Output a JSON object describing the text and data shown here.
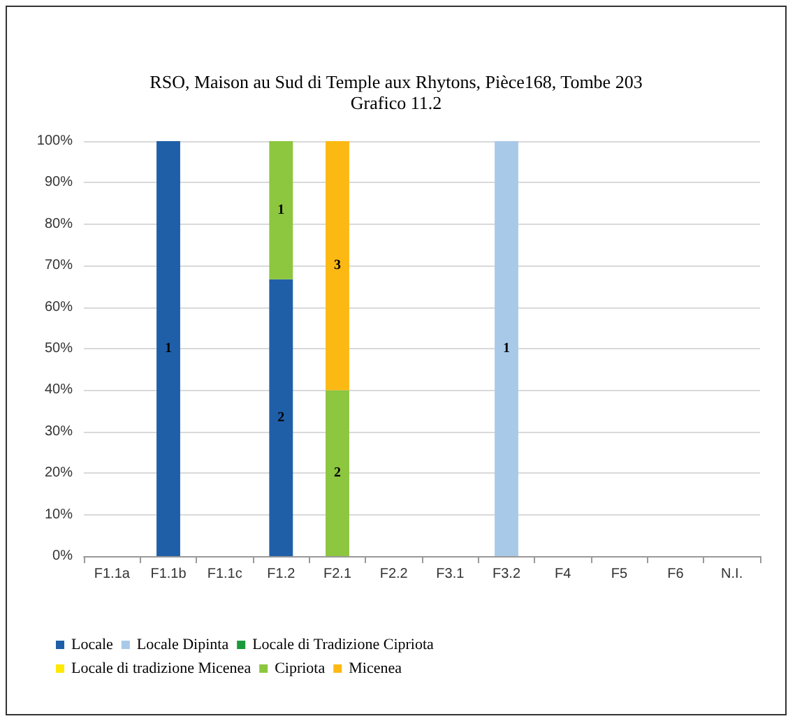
{
  "chart_data": {
    "type": "bar",
    "title": "RSO, Maison au Sud di Temple aux Rhytons, Pièce168, Tombe 203",
    "subtitle": "Grafico 11.2",
    "stacked": true,
    "categories": [
      "F1.1a",
      "F1.1b",
      "F1.1c",
      "F1.2",
      "F2.1",
      "F2.2",
      "F3.1",
      "F3.2",
      "F4",
      "F5",
      "F6",
      "N.I."
    ],
    "series": [
      {
        "name": "Locale",
        "color": "#1f5fa8",
        "values": [
          null,
          100,
          null,
          66.7,
          null,
          null,
          null,
          null,
          null,
          null,
          null,
          null
        ]
      },
      {
        "name": "Locale Dipinta",
        "color": "#a9c9e8",
        "values": [
          null,
          null,
          null,
          null,
          null,
          null,
          null,
          100,
          null,
          null,
          null,
          null
        ]
      },
      {
        "name": "Locale di Tradizione Cipriota",
        "color": "#1a9a3a",
        "values": [
          null,
          null,
          null,
          null,
          null,
          null,
          null,
          null,
          null,
          null,
          null,
          null
        ]
      },
      {
        "name": "Locale di tradizione Micenea",
        "color": "#ffe800",
        "values": [
          null,
          null,
          null,
          null,
          null,
          null,
          null,
          null,
          null,
          null,
          null,
          null
        ]
      },
      {
        "name": "Cipriota",
        "color": "#8dc63f",
        "values": [
          null,
          null,
          null,
          33.3,
          40,
          null,
          null,
          null,
          null,
          null,
          null,
          null
        ]
      },
      {
        "name": "Micenea",
        "color": "#fdb913",
        "values": [
          null,
          null,
          null,
          null,
          60,
          null,
          null,
          null,
          null,
          null,
          null,
          null
        ]
      }
    ],
    "annotations": [
      "1",
      "2",
      "1",
      "2",
      "3",
      "1"
    ],
    "ylim": [
      0,
      100
    ],
    "yticks": [
      {
        "value": 0,
        "label": "0%"
      },
      {
        "value": 10,
        "label": "10%"
      },
      {
        "value": 20,
        "label": "20%"
      },
      {
        "value": 30,
        "label": "30%"
      },
      {
        "value": 40,
        "label": "40%"
      },
      {
        "value": 50,
        "label": "50%"
      },
      {
        "value": 60,
        "label": "60%"
      },
      {
        "value": 70,
        "label": "70%"
      },
      {
        "value": 80,
        "label": "80%"
      },
      {
        "value": 90,
        "label": "90%"
      },
      {
        "value": 100,
        "label": "100%"
      }
    ],
    "grid": "y",
    "legend": "bottom"
  }
}
